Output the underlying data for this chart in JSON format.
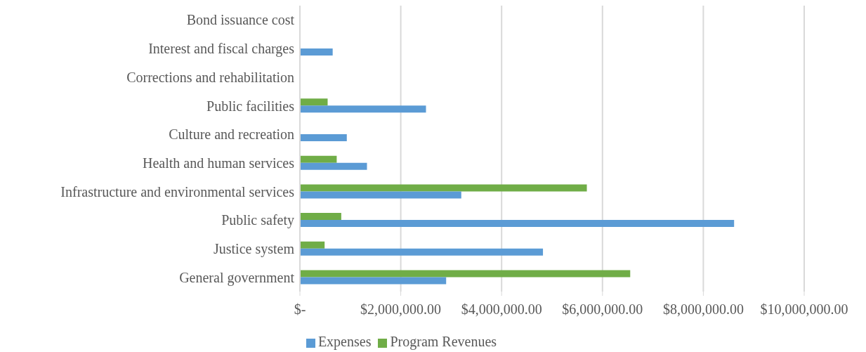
{
  "chart_data": {
    "type": "bar",
    "orientation": "horizontal",
    "categories": [
      "Bond issuance cost",
      "Interest and fiscal charges",
      "Corrections and rehabilitation",
      "Public facilities",
      "Culture and recreation",
      "Health and human services",
      "Infrastructure and environmental services",
      "Public safety",
      "Justice system",
      "General government"
    ],
    "series": [
      {
        "name": "Program Revenues",
        "color": "#70ad47",
        "values": [
          0,
          0,
          0,
          550000.0,
          0,
          730000.0,
          5690000.0,
          820000.0,
          490000.0,
          6550000.0
        ]
      },
      {
        "name": "Expenses",
        "color": "#5b9bd5",
        "values": [
          0,
          650000.0,
          0,
          2500000.0,
          930000.0,
          1330000.0,
          3200000.0,
          8610000.0,
          4820000.0,
          2900000.0
        ]
      }
    ],
    "xlim": [
      0,
      10000000
    ],
    "xticks": [
      {
        "value": 0,
        "label": "$-"
      },
      {
        "value": 2000000,
        "label": "$2,000,000.00"
      },
      {
        "value": 4000000,
        "label": "$4,000,000.00"
      },
      {
        "value": 6000000,
        "label": "$6,000,000.00"
      },
      {
        "value": 8000000,
        "label": "$8,000,000.00"
      },
      {
        "value": 10000000,
        "label": "$10,000,000.00"
      }
    ],
    "grid": "x",
    "legend": "bottom"
  }
}
